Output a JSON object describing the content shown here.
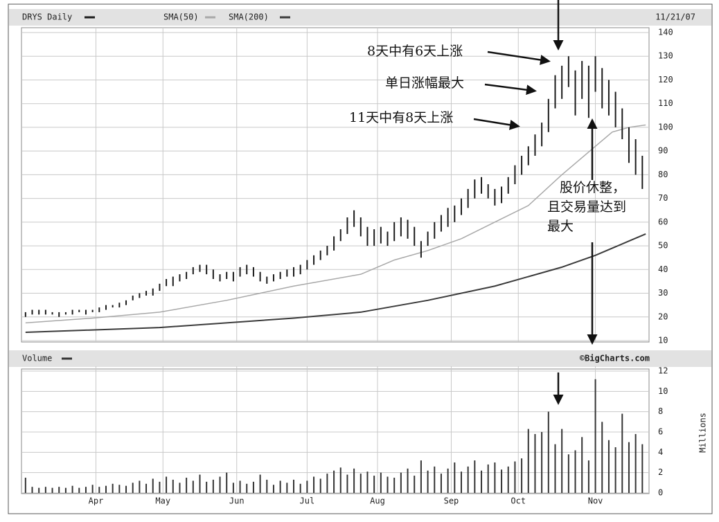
{
  "chart_data": [
    {
      "type": "hilo",
      "title": "DRYS Daily",
      "date": "11/21/07",
      "x": [
        0,
        2,
        4,
        6,
        8,
        10,
        12,
        14,
        16,
        18,
        20,
        22,
        24,
        26,
        28,
        30,
        32,
        34,
        36,
        38,
        40,
        42,
        44,
        46,
        48,
        50,
        52,
        54,
        56,
        58,
        60,
        62,
        64,
        66,
        68,
        70,
        72,
        74,
        76,
        78,
        80,
        82,
        84,
        86,
        88,
        90,
        92,
        94,
        96,
        98,
        100,
        102,
        104,
        106,
        108,
        110,
        112,
        114,
        116,
        118,
        120,
        122,
        124,
        126,
        128,
        130,
        132,
        134,
        136,
        138,
        140,
        142,
        144,
        146,
        148,
        150,
        152,
        154,
        156,
        158,
        160,
        162,
        164,
        166,
        168,
        170,
        172,
        174,
        176,
        178,
        180,
        182,
        184
      ],
      "low": [
        20,
        21,
        21,
        21,
        21,
        20,
        21,
        21,
        22,
        21,
        22,
        22,
        23,
        24,
        24,
        25,
        27,
        28,
        29,
        29,
        31,
        33,
        33,
        35,
        36,
        38,
        39,
        38,
        36,
        35,
        36,
        35,
        37,
        38,
        37,
        35,
        34,
        35,
        36,
        37,
        37,
        38,
        40,
        42,
        44,
        46,
        48,
        52,
        55,
        58,
        54,
        50,
        50,
        51,
        50,
        52,
        54,
        53,
        50,
        45,
        50,
        53,
        56,
        58,
        60,
        63,
        66,
        70,
        72,
        70,
        67,
        68,
        72,
        76,
        80,
        84,
        88,
        92,
        98,
        108,
        112,
        117,
        105,
        112,
        104,
        115,
        108,
        105,
        100,
        95,
        85,
        80,
        74
      ],
      "high": [
        22,
        23,
        23,
        23,
        22,
        22,
        22,
        23,
        23,
        23,
        23,
        24,
        25,
        25,
        26,
        27,
        29,
        30,
        31,
        32,
        34,
        36,
        37,
        38,
        39,
        41,
        42,
        42,
        40,
        38,
        39,
        39,
        41,
        42,
        41,
        39,
        37,
        38,
        39,
        40,
        41,
        42,
        44,
        46,
        48,
        50,
        54,
        57,
        62,
        65,
        62,
        58,
        57,
        58,
        56,
        60,
        62,
        61,
        58,
        52,
        56,
        60,
        63,
        66,
        67,
        70,
        74,
        78,
        79,
        76,
        74,
        75,
        79,
        84,
        88,
        92,
        97,
        102,
        112,
        122,
        126,
        130,
        124,
        128,
        126,
        130,
        125,
        120,
        115,
        108,
        100,
        95,
        88
      ],
      "color": "#1a1a1a",
      "series": [
        {
          "name": "SMA(50)",
          "color": "#a8a8a8",
          "x": [
            0,
            20,
            40,
            60,
            80,
            100,
            110,
            120,
            130,
            140,
            150,
            160,
            170,
            175,
            180,
            185
          ],
          "values": [
            17.5,
            19.5,
            22,
            27,
            33,
            38,
            44,
            48,
            53,
            60,
            67,
            80,
            92,
            98,
            100,
            101
          ]
        },
        {
          "name": "SMA(200)",
          "color": "#3a3a3a",
          "x": [
            0,
            40,
            80,
            100,
            120,
            140,
            160,
            170,
            180,
            185
          ],
          "values": [
            13.5,
            15.5,
            19.5,
            22,
            27,
            33,
            41,
            46,
            52,
            55
          ]
        }
      ],
      "xlim": [
        -1,
        186
      ],
      "ylim": [
        10,
        140
      ],
      "yticks": [
        10,
        20,
        30,
        40,
        50,
        60,
        70,
        80,
        90,
        100,
        110,
        120,
        130,
        140
      ],
      "grid": true,
      "annotations": [
        "8天中有6天上涨",
        "单日涨幅最大",
        "11天中有8天上涨",
        "股价休整，",
        "且交易量达到",
        "最大"
      ]
    },
    {
      "type": "bar",
      "title": "Volume",
      "source": "©BigCharts.com",
      "y_label": "Millions",
      "x": [
        0,
        2,
        4,
        6,
        8,
        10,
        12,
        14,
        16,
        18,
        20,
        22,
        24,
        26,
        28,
        30,
        32,
        34,
        36,
        38,
        40,
        42,
        44,
        46,
        48,
        50,
        52,
        54,
        56,
        58,
        60,
        62,
        64,
        66,
        68,
        70,
        72,
        74,
        76,
        78,
        80,
        82,
        84,
        86,
        88,
        90,
        92,
        94,
        96,
        98,
        100,
        102,
        104,
        106,
        108,
        110,
        112,
        114,
        116,
        118,
        120,
        122,
        124,
        126,
        128,
        130,
        132,
        134,
        136,
        138,
        140,
        142,
        144,
        146,
        148,
        150,
        152,
        154,
        156,
        158,
        160,
        162,
        164,
        166,
        168,
        170,
        172,
        174,
        176,
        178,
        180,
        182,
        184
      ],
      "values": [
        1.5,
        0.6,
        0.5,
        0.6,
        0.5,
        0.6,
        0.5,
        0.7,
        0.5,
        0.6,
        0.8,
        0.6,
        0.7,
        0.9,
        0.8,
        0.7,
        1.0,
        1.2,
        0.9,
        1.4,
        1.1,
        1.6,
        1.3,
        1.0,
        1.5,
        1.2,
        1.8,
        1.1,
        1.3,
        1.6,
        2.0,
        1.0,
        1.2,
        0.9,
        1.1,
        1.8,
        1.3,
        0.8,
        1.2,
        1.0,
        1.3,
        0.9,
        1.2,
        1.6,
        1.4,
        1.9,
        2.2,
        2.5,
        1.8,
        2.4,
        1.9,
        2.1,
        1.7,
        2.0,
        1.6,
        1.5,
        2.0,
        2.4,
        1.7,
        3.2,
        2.2,
        2.6,
        1.9,
        2.4,
        3.0,
        2.1,
        2.6,
        3.2,
        2.2,
        2.8,
        3.0,
        2.3,
        2.6,
        3.1,
        3.4,
        6.3,
        5.8,
        6.0,
        8.0,
        4.8,
        6.3,
        3.8,
        4.2,
        5.5,
        3.2,
        11.2,
        7.0,
        5.2,
        4.5,
        7.8,
        5.0,
        5.8,
        4.8
      ],
      "color": "#333333",
      "xlim": [
        -1,
        186
      ],
      "ylim": [
        0,
        12
      ],
      "yticks": [
        0,
        2,
        4,
        6,
        8,
        10,
        12
      ],
      "xticks": [
        {
          "value": 21,
          "label": "Apr"
        },
        {
          "value": 41,
          "label": "May"
        },
        {
          "value": 63,
          "label": "Jun"
        },
        {
          "value": 84,
          "label": "Jul"
        },
        {
          "value": 105,
          "label": "Aug"
        },
        {
          "value": 127,
          "label": "Sep"
        },
        {
          "value": 147,
          "label": "Oct"
        },
        {
          "value": 170,
          "label": "Nov"
        }
      ],
      "grid": true
    }
  ]
}
